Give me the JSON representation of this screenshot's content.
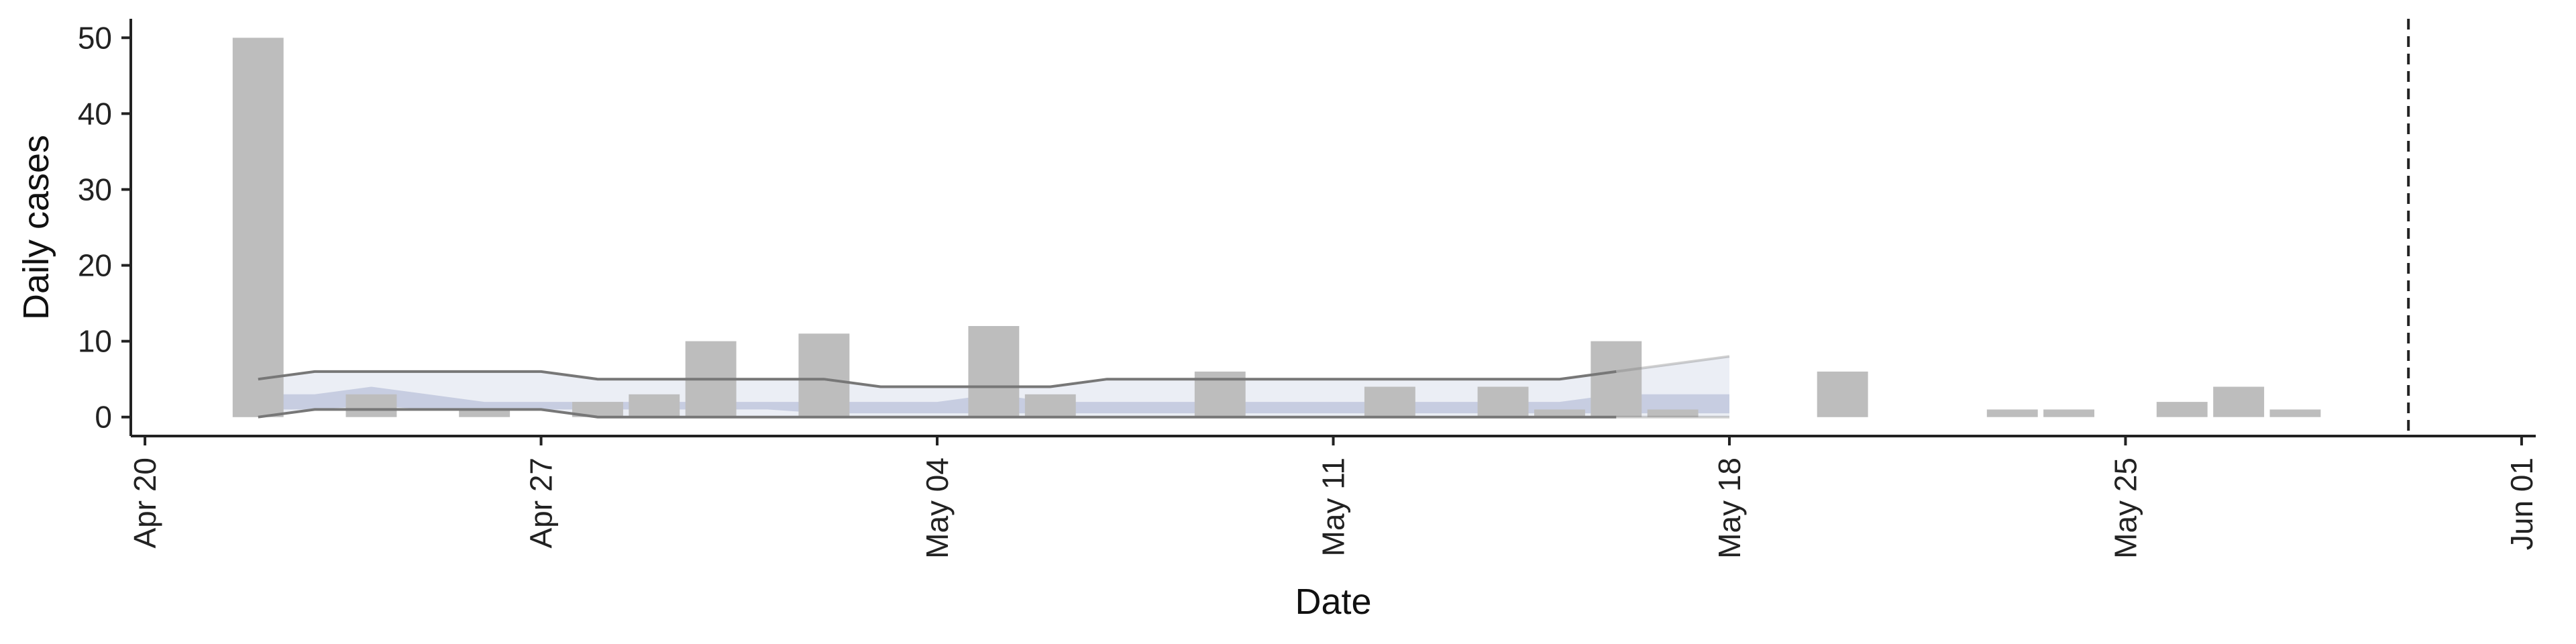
{
  "chart_data": {
    "type": "bar",
    "xlabel": "Date",
    "ylabel": "Daily cases",
    "x_range": [
      "2020-04-19T18:00",
      "2020-06-01T06:00"
    ],
    "ylim": [
      -2.5,
      52.5
    ],
    "grid": false,
    "legend": "none",
    "x_ticks": [
      {
        "date": "2020-04-20",
        "label": "Apr 20"
      },
      {
        "date": "2020-04-27",
        "label": "Apr 27"
      },
      {
        "date": "2020-05-04",
        "label": "May 04"
      },
      {
        "date": "2020-05-11",
        "label": "May 11"
      },
      {
        "date": "2020-05-18",
        "label": "May 18"
      },
      {
        "date": "2020-05-25",
        "label": "May 25"
      },
      {
        "date": "2020-06-01",
        "label": "Jun 01"
      }
    ],
    "y_ticks": [
      0,
      10,
      20,
      30,
      40,
      50
    ],
    "daily_cases": [
      {
        "date": "2020-04-22",
        "value": 50
      },
      {
        "date": "2020-04-24",
        "value": 3
      },
      {
        "date": "2020-04-26",
        "value": 1
      },
      {
        "date": "2020-04-28",
        "value": 2
      },
      {
        "date": "2020-04-29",
        "value": 3
      },
      {
        "date": "2020-04-30",
        "value": 10
      },
      {
        "date": "2020-05-02",
        "value": 11
      },
      {
        "date": "2020-05-05",
        "value": 12
      },
      {
        "date": "2020-05-06",
        "value": 3
      },
      {
        "date": "2020-05-09",
        "value": 6
      },
      {
        "date": "2020-05-12",
        "value": 4
      },
      {
        "date": "2020-05-14",
        "value": 4
      },
      {
        "date": "2020-05-15",
        "value": 1
      },
      {
        "date": "2020-05-16",
        "value": 10
      },
      {
        "date": "2020-05-17",
        "value": 1
      },
      {
        "date": "2020-05-20",
        "value": 6
      },
      {
        "date": "2020-05-23",
        "value": 1
      },
      {
        "date": "2020-05-24",
        "value": 1
      },
      {
        "date": "2020-05-26",
        "value": 2
      },
      {
        "date": "2020-05-27",
        "value": 4
      },
      {
        "date": "2020-05-28",
        "value": 1
      }
    ],
    "band_outer": {
      "dates": [
        "2020-04-22",
        "2020-04-23",
        "2020-04-24",
        "2020-04-25",
        "2020-04-26",
        "2020-04-27",
        "2020-04-28",
        "2020-04-29",
        "2020-04-30",
        "2020-05-01",
        "2020-05-02",
        "2020-05-03",
        "2020-05-04",
        "2020-05-05",
        "2020-05-06",
        "2020-05-07",
        "2020-05-08",
        "2020-05-09",
        "2020-05-10",
        "2020-05-11",
        "2020-05-12",
        "2020-05-13",
        "2020-05-14",
        "2020-05-15",
        "2020-05-16",
        "2020-05-17",
        "2020-05-18"
      ],
      "lower": [
        0,
        1,
        1,
        1,
        1,
        1,
        0,
        0,
        0,
        0,
        0,
        0,
        0,
        0,
        0,
        0,
        0,
        0,
        0,
        0,
        0,
        0,
        0,
        0,
        0,
        0,
        0
      ],
      "upper": [
        5,
        6,
        6,
        6,
        6,
        6,
        5,
        5,
        5,
        5,
        5,
        4,
        4,
        4,
        4,
        5,
        5,
        5,
        5,
        5,
        5,
        5,
        5,
        5,
        6,
        7,
        8
      ],
      "nowcast_from": "2020-05-16"
    },
    "band_inner": {
      "dates": [
        "2020-04-22",
        "2020-04-23",
        "2020-04-24",
        "2020-04-25",
        "2020-04-26",
        "2020-04-27",
        "2020-04-28",
        "2020-04-29",
        "2020-04-30",
        "2020-05-01",
        "2020-05-02",
        "2020-05-03",
        "2020-05-04",
        "2020-05-05",
        "2020-05-06",
        "2020-05-07",
        "2020-05-08",
        "2020-05-09",
        "2020-05-10",
        "2020-05-11",
        "2020-05-12",
        "2020-05-13",
        "2020-05-14",
        "2020-05-15",
        "2020-05-16",
        "2020-05-17",
        "2020-05-18"
      ],
      "lower": [
        1,
        1,
        1.5,
        1,
        1,
        1,
        1,
        1,
        1,
        1,
        0.5,
        0.5,
        0.5,
        0.5,
        0.5,
        0.5,
        0.5,
        0.5,
        0.5,
        0.5,
        0.5,
        0.5,
        0.5,
        0.5,
        0.5,
        0.5,
        0.5
      ],
      "upper": [
        3,
        3,
        4,
        3,
        2,
        2,
        2,
        2,
        2,
        2,
        2,
        2,
        2,
        3,
        2,
        2,
        2,
        2,
        2,
        2,
        2,
        2,
        2,
        2,
        3,
        3,
        3
      ]
    },
    "vline_date": "2020-05-30",
    "colors": {
      "bar": "#bdbdbd",
      "band_outer": "#e9ecf4",
      "band_inner": "#a9b3cf",
      "band_line": "#777777",
      "axis": "#222222",
      "vline": "#222222"
    }
  }
}
